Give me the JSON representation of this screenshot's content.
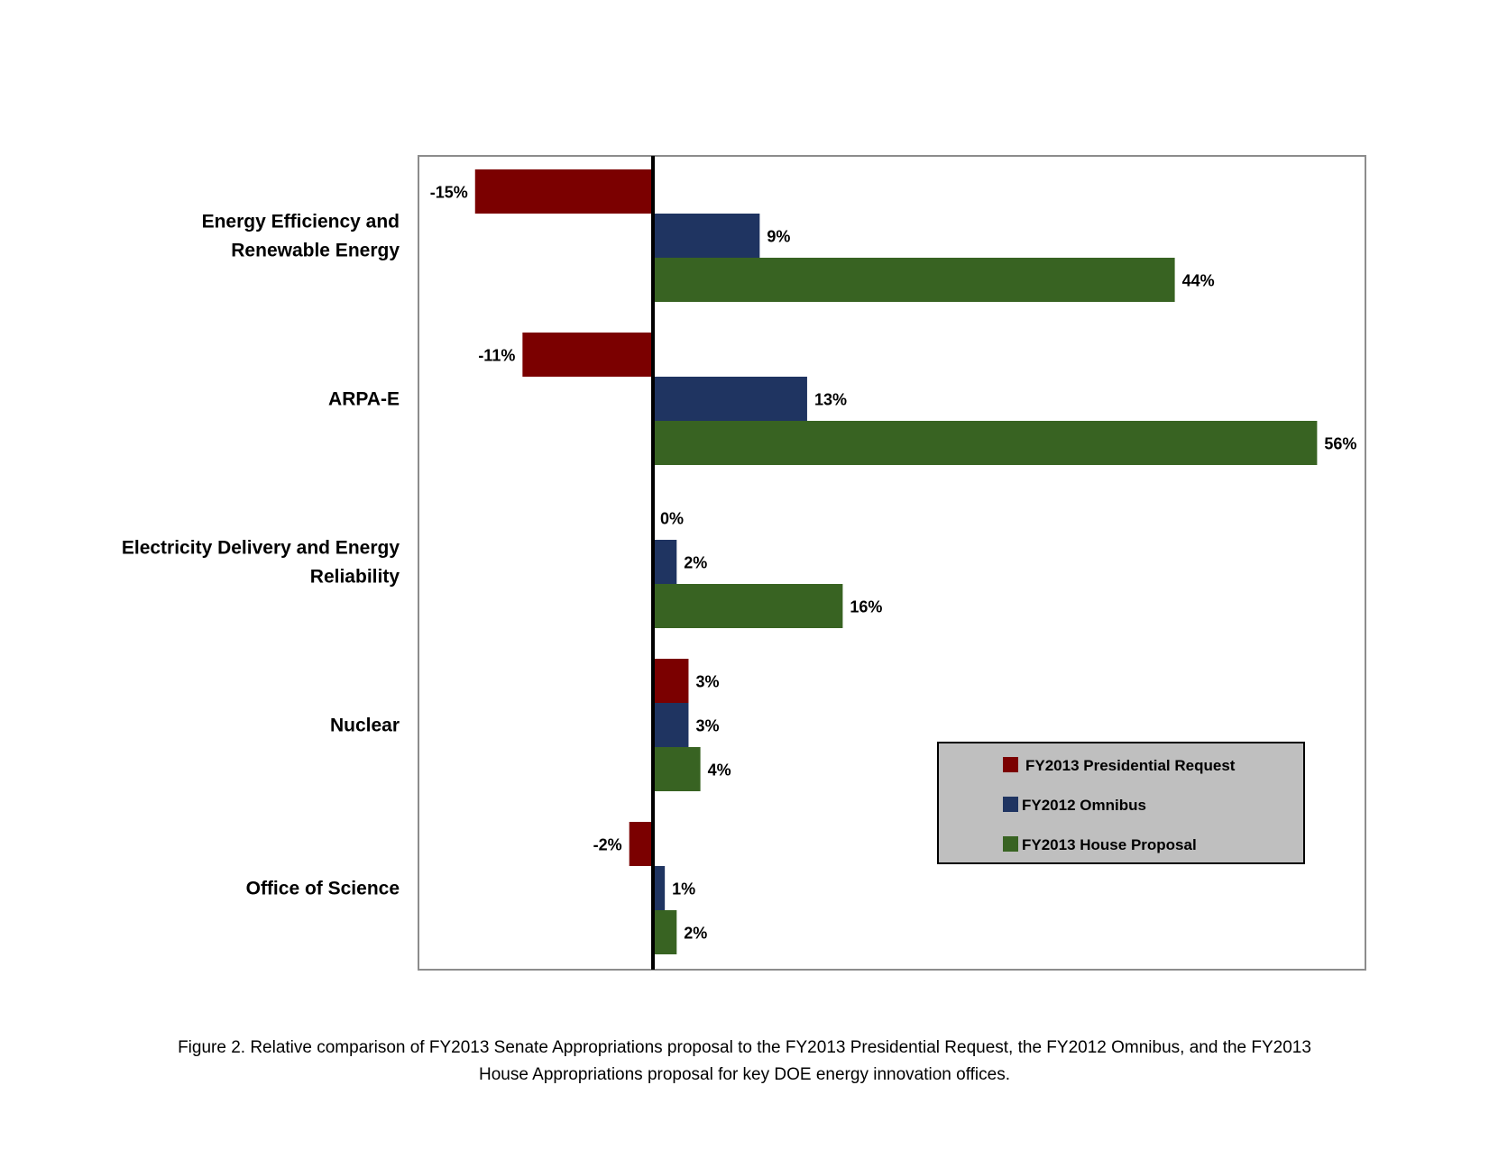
{
  "chart_data": {
    "type": "bar",
    "orientation": "horizontal",
    "categories": [
      [
        "Energy Efficiency and",
        "Renewable Energy"
      ],
      [
        "ARPA-E"
      ],
      [
        "Electricity Delivery and Energy",
        "Reliability"
      ],
      [
        "Nuclear"
      ],
      [
        "Office of Science"
      ]
    ],
    "series": [
      {
        "name": "FY2013 Presidential Request",
        "color": "#7b0000",
        "values": [
          -15,
          -11,
          0,
          3,
          -2
        ]
      },
      {
        "name": "FY2012 Omnibus",
        "color": "#1f3461",
        "values": [
          9,
          13,
          2,
          3,
          1
        ]
      },
      {
        "name": "FY2013 House Proposal",
        "color": "#386322",
        "values": [
          44,
          56,
          16,
          4,
          2
        ]
      }
    ],
    "value_format": "{v}%",
    "xlim": [
      -20,
      60
    ],
    "legend_position": "bottom-right",
    "grid": false
  },
  "caption": {
    "line1": "Figure 2. Relative comparison of FY2013 Senate Appropriations proposal to the FY2013 Presidential Request, the FY2012 Omnibus, and the FY2013",
    "line2": "House Appropriations proposal for key DOE energy innovation offices."
  }
}
